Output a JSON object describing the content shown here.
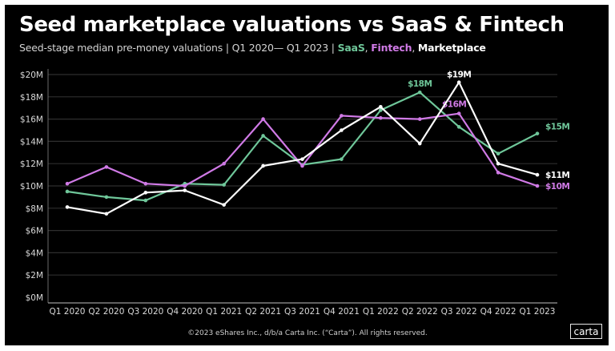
{
  "header": {
    "title": "Seed marketplace valuations vs SaaS & Fintech",
    "subtitle_prefix": "Seed-stage median pre-money valuations | Q1 2020— Q1 2023 | ",
    "legend_saas": "SaaS",
    "legend_sep1": ", ",
    "legend_fintech": "Fintech",
    "legend_sep2": ", ",
    "legend_marketplace": "Marketplace"
  },
  "footer": {
    "copyright": "©2023 eShares Inc., d/b/a Carta Inc. (“Carta”). All rights reserved.",
    "logo": "carta"
  },
  "colors": {
    "background": "#000000",
    "saas": "#6fc79a",
    "fintech": "#d07ae6",
    "marketplace": "#ffffff",
    "grid": "#2e2e2e",
    "axis_text": "#d9d9d9"
  },
  "chart_data": {
    "type": "line",
    "title": "Seed marketplace valuations vs SaaS & Fintech",
    "subtitle": "Seed-stage median pre-money valuations | Q1 2020— Q1 2023",
    "xlabel": "",
    "ylabel": "",
    "ylim": [
      0,
      20
    ],
    "y_ticks": [
      0,
      2,
      4,
      6,
      8,
      10,
      12,
      14,
      16,
      18,
      20
    ],
    "y_tick_labels": [
      "$0M",
      "$2M",
      "$4M",
      "$6M",
      "$8M",
      "$10M",
      "$12M",
      "$14M",
      "$16M",
      "$18M",
      "$20M"
    ],
    "grid": true,
    "legend": "subtitle",
    "categories": [
      "Q1 2020",
      "Q2 2020",
      "Q3 2020",
      "Q4 2020",
      "Q1 2021",
      "Q2 2021",
      "Q3 2021",
      "Q4 2021",
      "Q1 2022",
      "Q2 2022",
      "Q3 2022",
      "Q4 2022",
      "Q1 2023"
    ],
    "series": [
      {
        "name": "SaaS",
        "color": "#6fc79a",
        "values": [
          9.5,
          9.0,
          8.7,
          10.2,
          10.1,
          14.5,
          11.9,
          12.4,
          16.8,
          18.4,
          15.3,
          12.9,
          14.7
        ],
        "annotations": [
          {
            "index": 9,
            "text": "$18M"
          },
          {
            "index": 12,
            "text": "$15M"
          }
        ]
      },
      {
        "name": "Fintech",
        "color": "#d07ae6",
        "values": [
          10.2,
          11.7,
          10.2,
          10.0,
          12.0,
          16.0,
          11.8,
          16.3,
          16.1,
          16.0,
          16.5,
          11.2,
          10.0
        ],
        "annotations": [
          {
            "index": 10,
            "text": "$16M"
          },
          {
            "index": 12,
            "text": "$10M"
          }
        ]
      },
      {
        "name": "Marketplace",
        "color": "#ffffff",
        "values": [
          8.1,
          7.5,
          9.4,
          9.6,
          8.3,
          11.8,
          12.4,
          15.0,
          17.1,
          13.8,
          19.3,
          12.0,
          11.0
        ],
        "annotations": [
          {
            "index": 10,
            "text": "$19M"
          },
          {
            "index": 12,
            "text": "$11M"
          }
        ]
      }
    ]
  }
}
